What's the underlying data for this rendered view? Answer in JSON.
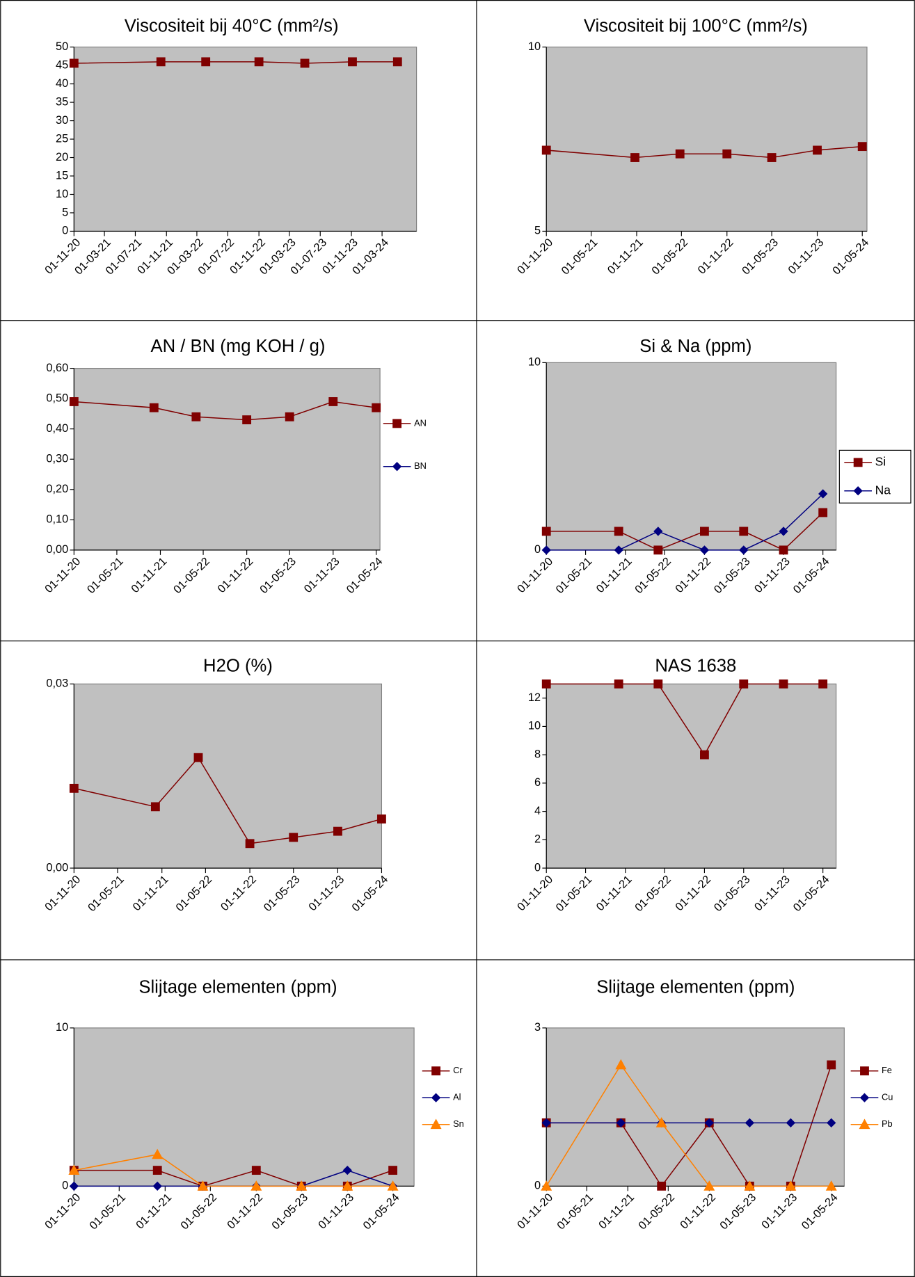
{
  "chart_data": [
    {
      "type": "line",
      "title": "Viscositeit bij 40°C (mm²/s)",
      "x": [
        "2020-11-01",
        "2021-10-10",
        "2022-04-05",
        "2022-11-01",
        "2023-05-01",
        "2023-11-05",
        "2024-05-01"
      ],
      "series": [
        {
          "color": "#800000",
          "marker": "square",
          "values": [
            45.6,
            46.0,
            46.0,
            46.0,
            45.6,
            46.0,
            46.0
          ]
        }
      ],
      "xlim": [
        "2020-11-01",
        "2024-07-15"
      ],
      "xticks": [
        {
          "value": "2020-11-01",
          "label": "01-11-20"
        },
        {
          "value": "2021-03-01",
          "label": "01-03-21"
        },
        {
          "value": "2021-07-01",
          "label": "01-07-21"
        },
        {
          "value": "2021-11-01",
          "label": "01-11-21"
        },
        {
          "value": "2022-03-01",
          "label": "01-03-22"
        },
        {
          "value": "2022-07-01",
          "label": "01-07-22"
        },
        {
          "value": "2022-11-01",
          "label": "01-11-22"
        },
        {
          "value": "2023-03-01",
          "label": "01-03-23"
        },
        {
          "value": "2023-07-01",
          "label": "01-07-23"
        },
        {
          "value": "2023-11-01",
          "label": "01-11-23"
        },
        {
          "value": "2024-03-01",
          "label": "01-03-24"
        }
      ],
      "ylim": [
        0,
        50
      ],
      "yticks": [
        0,
        5,
        10,
        15,
        20,
        25,
        30,
        35,
        40,
        45,
        50
      ]
    },
    {
      "type": "line",
      "title": "Viscositeit bij 100°C (mm²/s)",
      "x": [
        "2020-11-01",
        "2021-10-25",
        "2022-04-25",
        "2022-11-01",
        "2023-05-01",
        "2023-11-01",
        "2024-05-01"
      ],
      "series": [
        {
          "color": "#800000",
          "marker": "square",
          "values": [
            7.2,
            7.0,
            7.1,
            7.1,
            7.0,
            7.2,
            7.3
          ]
        }
      ],
      "xlim": [
        "2020-11-01",
        "2024-05-20"
      ],
      "xticks": [
        {
          "value": "2020-11-01",
          "label": "01-11-20"
        },
        {
          "value": "2021-05-01",
          "label": "01-05-21"
        },
        {
          "value": "2021-11-01",
          "label": "01-11-21"
        },
        {
          "value": "2022-05-01",
          "label": "01-05-22"
        },
        {
          "value": "2022-11-01",
          "label": "01-11-22"
        },
        {
          "value": "2023-05-01",
          "label": "01-05-23"
        },
        {
          "value": "2023-11-01",
          "label": "01-11-23"
        },
        {
          "value": "2024-05-01",
          "label": "01-05-24"
        }
      ],
      "ylim": [
        5,
        10
      ],
      "yticks": [
        5,
        10
      ]
    },
    {
      "type": "line",
      "title": "AN / BN (mg KOH / g)",
      "x": [
        "2020-11-01",
        "2021-10-05",
        "2022-04-01",
        "2022-11-01",
        "2023-05-01",
        "2023-11-01",
        "2024-05-01"
      ],
      "series": [
        {
          "name": "AN",
          "color": "#800000",
          "marker": "square",
          "values": [
            0.49,
            0.47,
            0.44,
            0.43,
            0.44,
            0.49,
            0.47
          ]
        },
        {
          "name": "BN",
          "color": "#000080",
          "marker": "diamond",
          "values": [
            null,
            null,
            null,
            null,
            null,
            null,
            null
          ]
        }
      ],
      "xlim": [
        "2020-11-01",
        "2024-05-17"
      ],
      "xticks": [
        {
          "value": "2020-11-01",
          "label": "01-11-20"
        },
        {
          "value": "2021-05-01",
          "label": "01-05-21"
        },
        {
          "value": "2021-11-01",
          "label": "01-11-21"
        },
        {
          "value": "2022-05-01",
          "label": "01-05-22"
        },
        {
          "value": "2022-11-01",
          "label": "01-11-22"
        },
        {
          "value": "2023-05-01",
          "label": "01-05-23"
        },
        {
          "value": "2023-11-01",
          "label": "01-11-23"
        },
        {
          "value": "2024-05-01",
          "label": "01-05-24"
        }
      ],
      "ylim": [
        0,
        0.6
      ],
      "yticks": [
        {
          "value": 0,
          "label": "0,00"
        },
        {
          "value": 0.1,
          "label": "0,10"
        },
        {
          "value": 0.2,
          "label": "0,20"
        },
        {
          "value": 0.3,
          "label": "0,30"
        },
        {
          "value": 0.4,
          "label": "0,40"
        },
        {
          "value": 0.5,
          "label": "0,50"
        },
        {
          "value": 0.6,
          "label": "0,60"
        }
      ],
      "legend": "right"
    },
    {
      "type": "line",
      "title": "Si & Na (ppm)",
      "x": [
        "2020-11-01",
        "2021-10-01",
        "2022-04-01",
        "2022-11-01",
        "2023-05-01",
        "2023-11-01",
        "2024-05-01"
      ],
      "series": [
        {
          "name": "Si",
          "color": "#800000",
          "marker": "square",
          "values": [
            1,
            1,
            0,
            1,
            1,
            0,
            2
          ]
        },
        {
          "name": "Na",
          "color": "#000080",
          "marker": "diamond",
          "values": [
            0,
            0,
            1,
            0,
            0,
            1,
            3
          ]
        }
      ],
      "xlim": [
        "2020-11-01",
        "2024-07-01"
      ],
      "xticks": [
        {
          "value": "2020-11-01",
          "label": "01-11-20"
        },
        {
          "value": "2021-05-01",
          "label": "01-05-21"
        },
        {
          "value": "2021-11-01",
          "label": "01-11-21"
        },
        {
          "value": "2022-05-01",
          "label": "01-05-22"
        },
        {
          "value": "2022-11-01",
          "label": "01-11-22"
        },
        {
          "value": "2023-05-01",
          "label": "01-05-23"
        },
        {
          "value": "2023-11-01",
          "label": "01-11-23"
        },
        {
          "value": "2024-05-01",
          "label": "01-05-24"
        }
      ],
      "ylim": [
        0,
        10
      ],
      "yticks": [
        0,
        10
      ],
      "legend": "right"
    },
    {
      "type": "line",
      "title": "H2O (%)",
      "x": [
        "2020-11-01",
        "2021-10-05",
        "2022-04-01",
        "2022-11-01",
        "2023-05-01",
        "2023-11-01",
        "2024-05-01"
      ],
      "series": [
        {
          "color": "#800000",
          "marker": "square",
          "values": [
            0.013,
            0.01,
            0.018,
            0.004,
            0.005,
            0.006,
            0.008
          ]
        }
      ],
      "xlim": [
        "2020-11-01",
        "2024-05-01"
      ],
      "xticks": [
        {
          "value": "2020-11-01",
          "label": "01-11-20"
        },
        {
          "value": "2021-05-01",
          "label": "01-05-21"
        },
        {
          "value": "2021-11-01",
          "label": "01-11-21"
        },
        {
          "value": "2022-05-01",
          "label": "01-05-22"
        },
        {
          "value": "2022-11-01",
          "label": "01-11-22"
        },
        {
          "value": "2023-05-01",
          "label": "01-05-23"
        },
        {
          "value": "2023-11-01",
          "label": "01-11-23"
        },
        {
          "value": "2024-05-01",
          "label": "01-05-24"
        }
      ],
      "ylim": [
        0,
        0.03
      ],
      "yticks": [
        {
          "value": 0,
          "label": "0,00"
        },
        {
          "value": 0.03,
          "label": "0,03"
        }
      ]
    },
    {
      "type": "line",
      "title": "NAS 1638",
      "x": [
        "2020-11-01",
        "2021-10-01",
        "2022-04-01",
        "2022-11-01",
        "2023-05-01",
        "2023-11-01",
        "2024-05-01"
      ],
      "series": [
        {
          "color": "#800000",
          "marker": "square",
          "values": [
            13,
            13,
            13,
            8,
            13,
            13,
            13
          ]
        }
      ],
      "xlim": [
        "2020-11-01",
        "2024-07-01"
      ],
      "xticks": [
        {
          "value": "2020-11-01",
          "label": "01-11-20"
        },
        {
          "value": "2021-05-01",
          "label": "01-05-21"
        },
        {
          "value": "2021-11-01",
          "label": "01-11-21"
        },
        {
          "value": "2022-05-01",
          "label": "01-05-22"
        },
        {
          "value": "2022-11-01",
          "label": "01-11-22"
        },
        {
          "value": "2023-05-01",
          "label": "01-05-23"
        },
        {
          "value": "2023-11-01",
          "label": "01-11-23"
        },
        {
          "value": "2024-05-01",
          "label": "01-05-24"
        }
      ],
      "ylim": [
        0,
        13
      ],
      "yticks": [
        0,
        2,
        4,
        6,
        8,
        10,
        12
      ]
    },
    {
      "type": "line",
      "title": "Slijtage elementen (ppm)",
      "x": [
        "2020-11-01",
        "2021-10-01",
        "2022-04-01",
        "2022-11-01",
        "2023-05-01",
        "2023-11-01",
        "2024-05-01"
      ],
      "series": [
        {
          "name": "Cr",
          "color": "#800000",
          "marker": "square",
          "values": [
            1,
            1,
            0,
            1,
            0,
            0,
            1
          ]
        },
        {
          "name": "Al",
          "color": "#000080",
          "marker": "diamond",
          "values": [
            0,
            0,
            0,
            0,
            0,
            1,
            0
          ]
        },
        {
          "name": "Sn",
          "color": "#ff8000",
          "marker": "triangle",
          "values": [
            1,
            2,
            0,
            0,
            0,
            0,
            0
          ]
        }
      ],
      "xlim": [
        "2020-11-01",
        "2024-07-25"
      ],
      "xticks": [
        {
          "value": "2020-11-01",
          "label": "01-11-20"
        },
        {
          "value": "2021-05-01",
          "label": "01-05-21"
        },
        {
          "value": "2021-11-01",
          "label": "01-11-21"
        },
        {
          "value": "2022-05-01",
          "label": "01-05-22"
        },
        {
          "value": "2022-11-01",
          "label": "01-11-22"
        },
        {
          "value": "2023-05-01",
          "label": "01-05-23"
        },
        {
          "value": "2023-11-01",
          "label": "01-11-23"
        },
        {
          "value": "2024-05-01",
          "label": "01-05-24"
        }
      ],
      "ylim": [
        0,
        10
      ],
      "yticks": [
        0,
        10
      ],
      "legend": "right"
    },
    {
      "type": "line",
      "title": "Slijtage elementen (ppm)",
      "x": [
        "2020-11-01",
        "2021-10-01",
        "2022-04-01",
        "2022-11-01",
        "2023-05-01",
        "2023-11-01",
        "2024-05-01"
      ],
      "series": [
        {
          "name": "Fe",
          "color": "#800000",
          "marker": "square",
          "values": [
            1.2,
            1.2,
            0,
            1.2,
            0,
            0,
            2.3
          ]
        },
        {
          "name": "Cu",
          "color": "#000080",
          "marker": "diamond",
          "values": [
            1.2,
            1.2,
            1.2,
            1.2,
            1.2,
            1.2,
            1.2
          ]
        },
        {
          "name": "Pb",
          "color": "#ff8000",
          "marker": "triangle",
          "values": [
            0,
            2.3,
            1.2,
            0,
            0,
            0,
            0
          ]
        }
      ],
      "xlim": [
        "2020-11-01",
        "2024-06-28"
      ],
      "xticks": [
        {
          "value": "2020-11-01",
          "label": "01-11-20"
        },
        {
          "value": "2021-05-01",
          "label": "01-05-21"
        },
        {
          "value": "2021-11-01",
          "label": "01-11-21"
        },
        {
          "value": "2022-05-01",
          "label": "01-05-22"
        },
        {
          "value": "2022-11-01",
          "label": "01-11-22"
        },
        {
          "value": "2023-05-01",
          "label": "01-05-23"
        },
        {
          "value": "2023-11-01",
          "label": "01-11-23"
        },
        {
          "value": "2024-05-01",
          "label": "01-05-24"
        }
      ],
      "ylim": [
        0,
        3
      ],
      "yticks": [
        0,
        3
      ],
      "legend": "right"
    }
  ]
}
